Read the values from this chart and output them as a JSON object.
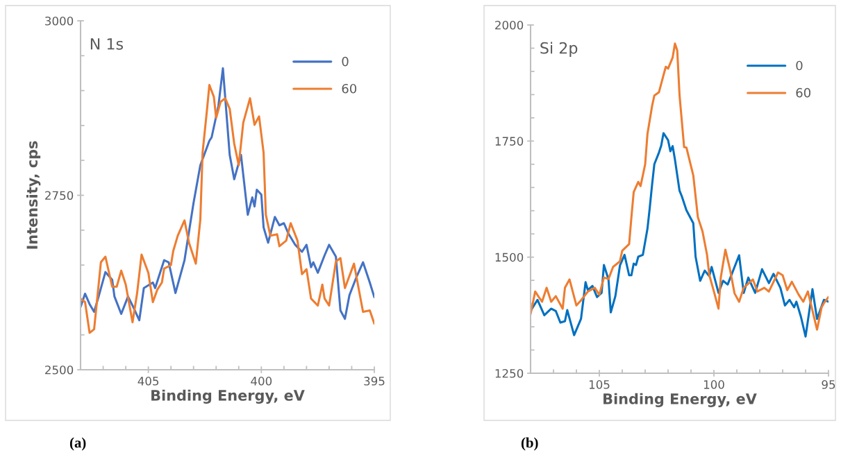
{
  "chart_data": [
    {
      "type": "line",
      "title": "N 1s",
      "xlabel": "Binding Energy, eV",
      "ylabel": "Intensity, cps",
      "annotations": [
        "(a)"
      ],
      "xlim": [
        408,
        395
      ],
      "xticks": [
        {
          "value": 408,
          "label": null
        },
        {
          "value": 407,
          "label": null
        },
        {
          "value": 406,
          "label": null
        },
        405,
        {
          "value": 404,
          "label": null
        },
        {
          "value": 403,
          "label": null
        },
        {
          "value": 402,
          "label": null
        },
        {
          "value": 401,
          "label": null
        },
        400,
        {
          "value": 399,
          "label": null
        },
        {
          "value": 398,
          "label": null
        },
        {
          "value": 397,
          "label": null
        },
        {
          "value": 396,
          "label": null
        },
        395
      ],
      "ylim": [
        2500,
        3000
      ],
      "yticks": [
        2500,
        {
          "value": 2550,
          "label": null
        },
        {
          "value": 2600,
          "label": null
        },
        {
          "value": 2650,
          "label": null
        },
        {
          "value": 2700,
          "label": null
        },
        2750,
        {
          "value": 2800,
          "label": null
        },
        {
          "value": 2850,
          "label": null
        },
        {
          "value": 2900,
          "label": null
        },
        {
          "value": 2950,
          "label": null
        },
        3000
      ],
      "grid": false,
      "legend": "top right",
      "marker": "none",
      "line_style": "solid",
      "series": [
        {
          "name": "0",
          "color": "#4472c4",
          "x": [
            408.0,
            407.8,
            407.6,
            407.4,
            407.2,
            406.9,
            406.6,
            406.5,
            406.2,
            405.9,
            405.7,
            405.4,
            405.2,
            404.8,
            404.7,
            404.3,
            404.1,
            403.8,
            403.4,
            403.0,
            402.7,
            402.3,
            402.2,
            401.9,
            401.7,
            401.4,
            401.2,
            400.9,
            400.6,
            400.4,
            400.3,
            400.2,
            400.0,
            399.9,
            399.7,
            399.4,
            399.2,
            399.0,
            398.8,
            398.5,
            398.2,
            398.0,
            397.8,
            397.7,
            397.5,
            397.2,
            397.0,
            396.7,
            396.5,
            396.3,
            396.1,
            395.8,
            395.5,
            395.2,
            395.0
          ],
          "values": [
            2590,
            2609,
            2594,
            2583,
            2605,
            2640,
            2629,
            2605,
            2580,
            2605,
            2592,
            2571,
            2617,
            2625,
            2617,
            2657,
            2654,
            2610,
            2657,
            2739,
            2793,
            2828,
            2833,
            2878,
            2932,
            2808,
            2773,
            2808,
            2722,
            2747,
            2734,
            2758,
            2751,
            2704,
            2682,
            2719,
            2707,
            2710,
            2695,
            2679,
            2669,
            2679,
            2647,
            2654,
            2639,
            2664,
            2679,
            2662,
            2585,
            2573,
            2607,
            2632,
            2654,
            2625,
            2604
          ]
        },
        {
          "name": "60",
          "color": "#ed7d31",
          "x": [
            408.0,
            407.8,
            407.6,
            407.4,
            407.1,
            406.9,
            406.6,
            406.4,
            406.2,
            406.0,
            405.7,
            405.5,
            405.3,
            405.0,
            404.8,
            404.6,
            404.4,
            404.3,
            404.0,
            403.9,
            403.7,
            403.4,
            403.2,
            402.9,
            402.7,
            402.6,
            402.4,
            402.3,
            402.1,
            402.0,
            401.8,
            401.6,
            401.4,
            401.2,
            401.0,
            400.8,
            400.5,
            400.3,
            400.1,
            399.9,
            399.8,
            399.6,
            399.3,
            399.2,
            398.9,
            398.7,
            398.4,
            398.2,
            398.0,
            397.8,
            397.5,
            397.3,
            397.2,
            397.0,
            396.7,
            396.5,
            396.3,
            395.9,
            395.5,
            395.2,
            395.0
          ],
          "values": [
            2602,
            2597,
            2553,
            2558,
            2654,
            2662,
            2619,
            2619,
            2642,
            2622,
            2568,
            2609,
            2665,
            2639,
            2597,
            2615,
            2625,
            2645,
            2650,
            2670,
            2692,
            2714,
            2682,
            2652,
            2715,
            2811,
            2874,
            2908,
            2891,
            2861,
            2884,
            2889,
            2874,
            2824,
            2793,
            2854,
            2889,
            2851,
            2863,
            2811,
            2722,
            2692,
            2694,
            2677,
            2685,
            2710,
            2685,
            2637,
            2644,
            2602,
            2592,
            2622,
            2602,
            2592,
            2655,
            2660,
            2617,
            2652,
            2583,
            2585,
            2566
          ]
        }
      ]
    },
    {
      "type": "line",
      "title": "Si 2p",
      "xlabel": "Binding Energy, eV",
      "annotations": [
        "(b)"
      ],
      "xlim": [
        108,
        95
      ],
      "xticks": [
        {
          "value": 108,
          "label": null
        },
        {
          "value": 107,
          "label": null
        },
        {
          "value": 106,
          "label": null
        },
        105,
        {
          "value": 104,
          "label": null
        },
        {
          "value": 103,
          "label": null
        },
        {
          "value": 102,
          "label": null
        },
        {
          "value": 101,
          "label": null
        },
        100,
        {
          "value": 99,
          "label": null
        },
        {
          "value": 98,
          "label": null
        },
        {
          "value": 97,
          "label": null
        },
        {
          "value": 96,
          "label": null
        },
        95
      ],
      "ylim": [
        1250,
        2000
      ],
      "yticks": [
        1250,
        {
          "value": 1300,
          "label": null
        },
        {
          "value": 1350,
          "label": null
        },
        {
          "value": 1400,
          "label": null
        },
        {
          "value": 1450,
          "label": null
        },
        1500,
        {
          "value": 1550,
          "label": null
        },
        {
          "value": 1600,
          "label": null
        },
        {
          "value": 1650,
          "label": null
        },
        {
          "value": 1700,
          "label": null
        },
        1750,
        {
          "value": 1800,
          "label": null
        },
        {
          "value": 1850,
          "label": null
        },
        {
          "value": 1900,
          "label": null
        },
        {
          "value": 1950,
          "label": null
        },
        2000
      ],
      "grid": false,
      "legend": "top right",
      "marker": "none",
      "line_style": "solid",
      "series": [
        {
          "name": "0",
          "color": "#0070c0",
          "x": [
            108.0,
            107.7,
            107.4,
            107.1,
            106.9,
            106.7,
            106.5,
            106.4,
            106.1,
            105.8,
            105.6,
            105.5,
            105.3,
            105.1,
            104.9,
            104.8,
            104.6,
            104.5,
            104.3,
            104.1,
            103.9,
            103.7,
            103.6,
            103.5,
            103.4,
            103.3,
            103.1,
            102.9,
            102.8,
            102.7,
            102.6,
            102.4,
            102.3,
            102.2,
            102.0,
            101.9,
            101.8,
            101.7,
            101.5,
            101.4,
            101.2,
            100.9,
            100.8,
            100.6,
            100.4,
            100.2,
            100.1,
            99.8,
            99.6,
            99.4,
            98.9,
            98.7,
            98.5,
            98.2,
            97.9,
            97.6,
            97.4,
            97.1,
            96.9,
            96.7,
            96.5,
            96.4,
            96.2,
            96.0,
            95.7,
            95.5,
            95.2,
            95.0
          ],
          "values": [
            1384,
            1408,
            1375,
            1389,
            1384,
            1359,
            1362,
            1386,
            1332,
            1367,
            1446,
            1429,
            1438,
            1414,
            1423,
            1483,
            1452,
            1381,
            1416,
            1482,
            1505,
            1461,
            1461,
            1486,
            1483,
            1501,
            1505,
            1561,
            1606,
            1655,
            1700,
            1725,
            1740,
            1767,
            1752,
            1728,
            1739,
            1710,
            1643,
            1631,
            1601,
            1573,
            1501,
            1449,
            1471,
            1459,
            1479,
            1423,
            1449,
            1441,
            1504,
            1423,
            1456,
            1423,
            1474,
            1444,
            1464,
            1434,
            1396,
            1408,
            1392,
            1404,
            1371,
            1329,
            1431,
            1367,
            1408,
            1404
          ]
        },
        {
          "name": "60",
          "color": "#ed7d31",
          "x": [
            108.0,
            107.8,
            107.6,
            107.5,
            107.3,
            107.1,
            106.9,
            106.6,
            106.5,
            106.3,
            106.0,
            105.8,
            105.5,
            105.2,
            105.0,
            104.8,
            104.6,
            104.4,
            104.1,
            104.0,
            103.7,
            103.6,
            103.5,
            103.3,
            103.2,
            103.0,
            102.9,
            102.7,
            102.6,
            102.4,
            102.2,
            102.1,
            102.0,
            101.8,
            101.7,
            101.6,
            101.5,
            101.3,
            101.2,
            100.9,
            100.7,
            100.5,
            100.3,
            100.2,
            100.0,
            99.8,
            99.7,
            99.5,
            99.3,
            99.1,
            98.9,
            98.7,
            98.3,
            98.1,
            97.8,
            97.6,
            97.2,
            97.0,
            96.8,
            96.6,
            96.3,
            96.1,
            95.9,
            95.5,
            95.3,
            95.2,
            95.0
          ],
          "values": [
            1377,
            1426,
            1411,
            1404,
            1434,
            1404,
            1416,
            1389,
            1434,
            1452,
            1396,
            1407,
            1426,
            1434,
            1419,
            1456,
            1453,
            1479,
            1491,
            1514,
            1528,
            1586,
            1640,
            1662,
            1653,
            1700,
            1765,
            1825,
            1848,
            1855,
            1892,
            1910,
            1906,
            1930,
            1960,
            1945,
            1849,
            1737,
            1736,
            1676,
            1586,
            1556,
            1505,
            1461,
            1426,
            1389,
            1456,
            1516,
            1474,
            1422,
            1404,
            1434,
            1452,
            1426,
            1434,
            1426,
            1467,
            1461,
            1429,
            1447,
            1419,
            1404,
            1426,
            1344,
            1392,
            1401,
            1414
          ]
        }
      ]
    }
  ]
}
